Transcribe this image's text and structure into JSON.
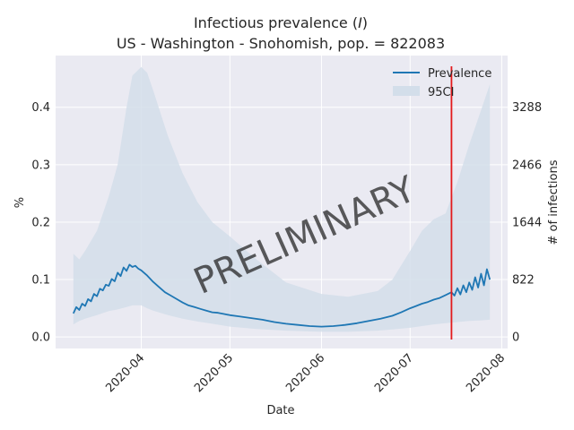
{
  "chart_data": {
    "type": "line",
    "title_line1_prefix": "Infectious prevalence (",
    "title_line1_var": "I",
    "title_line1_suffix": ")",
    "title_line2": "US - Washington - Snohomish, pop. = 822083",
    "xlabel": "Date",
    "ylabel": "%",
    "ylabel_right": "# of infections",
    "watermark": "PRELIMINARY",
    "xlim": [
      "2020-03-03",
      "2020-08-03"
    ],
    "ylim": [
      -0.02,
      0.49
    ],
    "grid": true,
    "legend_position": "top-right",
    "x_ticks": [
      "2020-04-01",
      "2020-05-01",
      "2020-06-01",
      "2020-07-01",
      "2020-08-01"
    ],
    "x_tick_labels": [
      "2020-04",
      "2020-05",
      "2020-06",
      "2020-07",
      "2020-08"
    ],
    "y_ticks": [
      0.0,
      0.1,
      0.2,
      0.3,
      0.4
    ],
    "y_tick_labels": [
      "0.0",
      "0.1",
      "0.2",
      "0.3",
      "0.4"
    ],
    "y2_tick_labels": [
      "0",
      "822",
      "1644",
      "2466",
      "3288"
    ],
    "vertical_marker_date": "2020-07-15",
    "colors": {
      "line": "#1f77b4",
      "band": "#d3deea",
      "marker": "#e31a1c",
      "plot_bg": "#eaeaf2",
      "grid": "#ffffff",
      "watermark": "#a8a8a8"
    },
    "series": [
      {
        "name": "Prevalence",
        "type": "line",
        "x": [
          "2020-03-09",
          "2020-03-10",
          "2020-03-11",
          "2020-03-12",
          "2020-03-13",
          "2020-03-14",
          "2020-03-15",
          "2020-03-16",
          "2020-03-17",
          "2020-03-18",
          "2020-03-19",
          "2020-03-20",
          "2020-03-21",
          "2020-03-22",
          "2020-03-23",
          "2020-03-24",
          "2020-03-25",
          "2020-03-26",
          "2020-03-27",
          "2020-03-28",
          "2020-03-29",
          "2020-03-30",
          "2020-03-31",
          "2020-04-01",
          "2020-04-03",
          "2020-04-05",
          "2020-04-07",
          "2020-04-09",
          "2020-04-11",
          "2020-04-13",
          "2020-04-15",
          "2020-04-17",
          "2020-04-19",
          "2020-04-21",
          "2020-04-23",
          "2020-04-25",
          "2020-04-27",
          "2020-04-29",
          "2020-05-01",
          "2020-05-04",
          "2020-05-08",
          "2020-05-12",
          "2020-05-16",
          "2020-05-20",
          "2020-05-24",
          "2020-05-28",
          "2020-06-01",
          "2020-06-05",
          "2020-06-09",
          "2020-06-13",
          "2020-06-17",
          "2020-06-21",
          "2020-06-25",
          "2020-06-28",
          "2020-07-01",
          "2020-07-03",
          "2020-07-05",
          "2020-07-07",
          "2020-07-09",
          "2020-07-11",
          "2020-07-13",
          "2020-07-15",
          "2020-07-16",
          "2020-07-17",
          "2020-07-18",
          "2020-07-19",
          "2020-07-20",
          "2020-07-21",
          "2020-07-22",
          "2020-07-23",
          "2020-07-24",
          "2020-07-25",
          "2020-07-26",
          "2020-07-27",
          "2020-07-28"
        ],
        "values": [
          0.041,
          0.052,
          0.047,
          0.058,
          0.054,
          0.066,
          0.062,
          0.075,
          0.071,
          0.084,
          0.081,
          0.091,
          0.089,
          0.101,
          0.097,
          0.112,
          0.106,
          0.121,
          0.115,
          0.126,
          0.122,
          0.124,
          0.119,
          0.116,
          0.107,
          0.096,
          0.087,
          0.078,
          0.072,
          0.066,
          0.06,
          0.055,
          0.052,
          0.049,
          0.046,
          0.043,
          0.042,
          0.04,
          0.038,
          0.036,
          0.033,
          0.03,
          0.026,
          0.023,
          0.021,
          0.019,
          0.018,
          0.019,
          0.021,
          0.024,
          0.028,
          0.032,
          0.037,
          0.043,
          0.05,
          0.054,
          0.058,
          0.061,
          0.065,
          0.068,
          0.073,
          0.078,
          0.072,
          0.085,
          0.074,
          0.09,
          0.078,
          0.095,
          0.082,
          0.104,
          0.086,
          0.11,
          0.09,
          0.118,
          0.1
        ]
      },
      {
        "name": "95CI",
        "type": "band",
        "x": [
          "2020-03-09",
          "2020-03-11",
          "2020-03-13",
          "2020-03-17",
          "2020-03-21",
          "2020-03-24",
          "2020-03-27",
          "2020-03-29",
          "2020-04-01",
          "2020-04-03",
          "2020-04-05",
          "2020-04-10",
          "2020-04-15",
          "2020-04-20",
          "2020-04-25",
          "2020-05-01",
          "2020-05-10",
          "2020-05-20",
          "2020-06-01",
          "2020-06-10",
          "2020-06-20",
          "2020-06-25",
          "2020-07-01",
          "2020-07-05",
          "2020-07-09",
          "2020-07-13",
          "2020-07-17",
          "2020-07-21",
          "2020-07-25",
          "2020-07-28"
        ],
        "upper": [
          0.145,
          0.135,
          0.15,
          0.185,
          0.245,
          0.3,
          0.4,
          0.455,
          0.47,
          0.46,
          0.43,
          0.35,
          0.285,
          0.235,
          0.2,
          0.175,
          0.135,
          0.095,
          0.075,
          0.07,
          0.08,
          0.1,
          0.15,
          0.185,
          0.205,
          0.215,
          0.27,
          0.335,
          0.395,
          0.44
        ],
        "lower": [
          0.022,
          0.028,
          0.032,
          0.038,
          0.045,
          0.048,
          0.052,
          0.055,
          0.055,
          0.05,
          0.046,
          0.038,
          0.032,
          0.027,
          0.023,
          0.018,
          0.014,
          0.011,
          0.009,
          0.009,
          0.011,
          0.013,
          0.016,
          0.019,
          0.022,
          0.024,
          0.026,
          0.028,
          0.029,
          0.03
        ]
      }
    ]
  }
}
